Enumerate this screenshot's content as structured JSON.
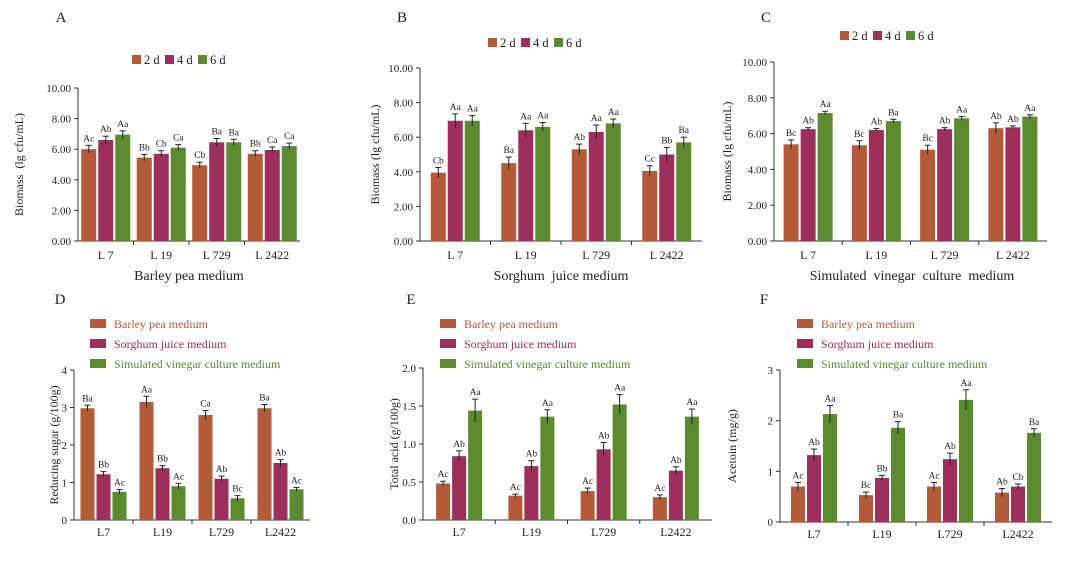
{
  "colors": {
    "series": [
      "#B35A38",
      "#9E2F5C",
      "#5C8A2E"
    ],
    "axis": "#333333",
    "legend_text": [
      "#B35A38",
      "#9E2F5C",
      "#5C8A2E"
    ]
  },
  "chart_data": [
    {
      "panel": "A",
      "type": "bar",
      "categories": [
        "L 7",
        "L 19",
        "L 729",
        "L 2422"
      ],
      "xlabel": "Barley pea medium",
      "ylabel": "Biomass  (lg cfu/mL)",
      "ylim": [
        0,
        10
      ],
      "yticks": [
        "0.00",
        "2.00",
        "4.00",
        "6.00",
        "8.00",
        "10.00"
      ],
      "legend_position": "top",
      "legend_orientation": "horizontal",
      "series": [
        {
          "name": "2 d",
          "values": [
            6.0,
            5.45,
            4.95,
            5.7
          ],
          "errors": [
            0.25,
            0.2,
            0.2,
            0.2
          ],
          "labels": [
            "Ac",
            "Bb",
            "Cb",
            "Bb"
          ]
        },
        {
          "name": "4 d",
          "values": [
            6.6,
            5.7,
            6.45,
            5.95
          ],
          "errors": [
            0.25,
            0.2,
            0.25,
            0.2
          ],
          "labels": [
            "Ab",
            "Cb",
            "Ba",
            "Ca"
          ]
        },
        {
          "name": "6 d",
          "values": [
            6.95,
            6.1,
            6.45,
            6.2
          ],
          "errors": [
            0.25,
            0.2,
            0.2,
            0.2
          ],
          "labels": [
            "Aa",
            "Ca",
            "Ba",
            "Ca"
          ]
        }
      ]
    },
    {
      "panel": "B",
      "type": "bar",
      "categories": [
        "L 7",
        "L 19",
        "L 729",
        "L 2422"
      ],
      "xlabel": "Sorghum  juice medium",
      "ylabel": "Biomass (lg cfu/mL)",
      "ylim": [
        0,
        10
      ],
      "yticks": [
        "0.00",
        "2.00",
        "4.00",
        "6.00",
        "8.00",
        "10.00"
      ],
      "legend_position": "top",
      "legend_orientation": "horizontal",
      "series": [
        {
          "name": "2 d",
          "values": [
            3.95,
            4.5,
            5.3,
            4.05
          ],
          "errors": [
            0.3,
            0.35,
            0.3,
            0.3
          ],
          "labels": [
            "Cb",
            "Ba",
            "Ab",
            "Cc"
          ]
        },
        {
          "name": "4 d",
          "values": [
            6.95,
            6.4,
            6.3,
            5.0
          ],
          "errors": [
            0.4,
            0.4,
            0.4,
            0.4
          ],
          "labels": [
            "Aa",
            "Aa",
            "Aa",
            "Bb"
          ]
        },
        {
          "name": "6 d",
          "values": [
            6.95,
            6.6,
            6.8,
            5.7
          ],
          "errors": [
            0.3,
            0.25,
            0.25,
            0.3
          ],
          "labels": [
            "Aa",
            "Aa",
            "Aa",
            "Ba"
          ]
        }
      ]
    },
    {
      "panel": "C",
      "type": "bar",
      "categories": [
        "L 7",
        "L 19",
        "L 729",
        "L 2422"
      ],
      "xlabel": "Simulated  vinegar  culture  medium",
      "ylabel": "Biomass (lg cfu/mL)",
      "ylim": [
        0,
        10
      ],
      "yticks": [
        "0.00",
        "2.00",
        "4.00",
        "6.00",
        "8.00",
        "10.00"
      ],
      "legend_position": "top",
      "legend_orientation": "horizontal",
      "series": [
        {
          "name": "2 d",
          "values": [
            5.4,
            5.35,
            5.1,
            6.3
          ],
          "errors": [
            0.25,
            0.25,
            0.25,
            0.3
          ],
          "labels": [
            "Bc",
            "Bc",
            "Bc",
            "Ab"
          ]
        },
        {
          "name": "4 d",
          "values": [
            6.25,
            6.2,
            6.25,
            6.35
          ],
          "errors": [
            0.08,
            0.08,
            0.08,
            0.08
          ],
          "labels": [
            "Ab",
            "Ab",
            "Ab",
            "Ab"
          ]
        },
        {
          "name": "6 d",
          "values": [
            7.15,
            6.7,
            6.85,
            6.95
          ],
          "errors": [
            0.1,
            0.1,
            0.1,
            0.1
          ],
          "labels": [
            "Aa",
            "Ba",
            "Aa",
            "Aa"
          ]
        }
      ]
    },
    {
      "panel": "D",
      "type": "bar",
      "categories": [
        "L7",
        "L19",
        "L729",
        "L2422"
      ],
      "xlabel": "",
      "ylabel": "Reducing sugar (g/100g)",
      "ylim": [
        0,
        4
      ],
      "yticks": [
        "0",
        "1",
        "2",
        "3",
        "4"
      ],
      "legend_position": "top-left",
      "legend_orientation": "vertical",
      "series": [
        {
          "name": "Barley pea medium",
          "values": [
            2.98,
            3.15,
            2.8,
            2.98
          ],
          "errors": [
            0.08,
            0.15,
            0.12,
            0.1
          ],
          "labels": [
            "Ba",
            "Aa",
            "Ca",
            "Ba"
          ]
        },
        {
          "name": "Sorghum juice medium",
          "values": [
            1.22,
            1.38,
            1.1,
            1.52
          ],
          "errors": [
            0.07,
            0.07,
            0.07,
            0.09
          ],
          "labels": [
            "Bb",
            "Bb",
            "Ab",
            "Ab"
          ]
        },
        {
          "name": "Simulated vinegar culture medium",
          "values": [
            0.75,
            0.9,
            0.58,
            0.82
          ],
          "errors": [
            0.06,
            0.08,
            0.07,
            0.05
          ],
          "labels": [
            "Ac",
            "Ac",
            "Bc",
            "Ac"
          ]
        }
      ]
    },
    {
      "panel": "E",
      "type": "bar",
      "categories": [
        "L7",
        "L19",
        "L729",
        "L2422"
      ],
      "xlabel": "",
      "ylabel": "Total acid (g/100g)",
      "ylim": [
        0,
        2
      ],
      "yticks": [
        "0.0",
        "0.5",
        "1.0",
        "1.5",
        "2.0"
      ],
      "legend_position": "top-left",
      "legend_orientation": "vertical",
      "series": [
        {
          "name": "Barley pea medium",
          "values": [
            0.48,
            0.32,
            0.38,
            0.3
          ],
          "errors": [
            0.03,
            0.02,
            0.04,
            0.03
          ],
          "labels": [
            "Ac",
            "Ac",
            "Ac",
            "Ac"
          ]
        },
        {
          "name": "Sorghum juice medium",
          "values": [
            0.84,
            0.71,
            0.93,
            0.65
          ],
          "errors": [
            0.07,
            0.07,
            0.09,
            0.05
          ],
          "labels": [
            "Ab",
            "Ab",
            "Ab",
            "Ab"
          ]
        },
        {
          "name": "Simulated vinegar culture medium",
          "values": [
            1.44,
            1.36,
            1.52,
            1.36
          ],
          "errors": [
            0.15,
            0.09,
            0.13,
            0.1
          ],
          "labels": [
            "Aa",
            "Aa",
            "Aa",
            "Aa"
          ]
        }
      ]
    },
    {
      "panel": "F",
      "type": "bar",
      "categories": [
        "L7",
        "L19",
        "L729",
        "L2422"
      ],
      "xlabel": "",
      "ylabel": "Acetoin (mg/g)",
      "ylim": [
        0,
        3
      ],
      "yticks": [
        "0",
        "1",
        "2",
        "3"
      ],
      "legend_position": "top-left",
      "legend_orientation": "vertical",
      "series": [
        {
          "name": "Barley pea medium",
          "values": [
            0.7,
            0.53,
            0.7,
            0.58
          ],
          "errors": [
            0.08,
            0.06,
            0.08,
            0.08
          ],
          "labels": [
            "Ac",
            "Bc",
            "Ac",
            "Ab"
          ]
        },
        {
          "name": "Sorghum juice medium",
          "values": [
            1.32,
            0.87,
            1.24,
            0.7
          ],
          "errors": [
            0.12,
            0.05,
            0.12,
            0.05
          ],
          "labels": [
            "Ab",
            "Bb",
            "Ab",
            "Cb"
          ]
        },
        {
          "name": "Simulated vinegar culture medium",
          "values": [
            2.13,
            1.86,
            2.41,
            1.76
          ],
          "errors": [
            0.17,
            0.12,
            0.2,
            0.08
          ],
          "labels": [
            "Aa",
            "Ba",
            "Aa",
            "Ba"
          ]
        }
      ]
    }
  ]
}
